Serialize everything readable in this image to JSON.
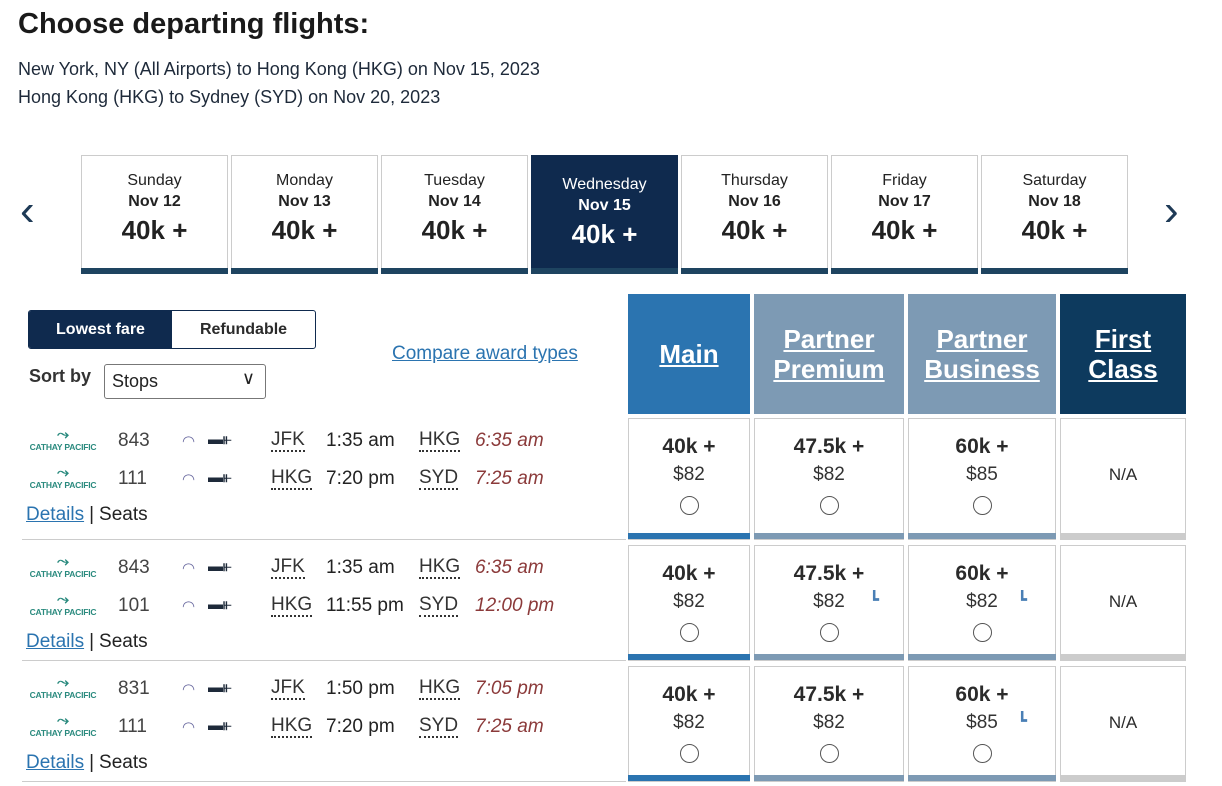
{
  "header": {
    "title": "Choose departing flights:",
    "segments": [
      "New York, NY (All Airports) to Hong Kong (HKG) on Nov 15, 2023",
      "Hong Kong (HKG) to Sydney (SYD) on Nov 20, 2023"
    ]
  },
  "date_strip": {
    "prev_icon": "chevron-left-icon",
    "next_icon": "chevron-right-icon",
    "days": [
      {
        "weekday": "Sunday",
        "date": "Nov 12",
        "price": "40k +"
      },
      {
        "weekday": "Monday",
        "date": "Nov 13",
        "price": "40k +"
      },
      {
        "weekday": "Tuesday",
        "date": "Nov 14",
        "price": "40k +"
      },
      {
        "weekday": "Wednesday",
        "date": "Nov 15",
        "price": "40k +",
        "selected": true
      },
      {
        "weekday": "Thursday",
        "date": "Nov 16",
        "price": "40k +"
      },
      {
        "weekday": "Friday",
        "date": "Nov 17",
        "price": "40k +"
      },
      {
        "weekday": "Saturday",
        "date": "Nov 18",
        "price": "40k +"
      }
    ]
  },
  "controls": {
    "fare_toggle": [
      "Lowest fare",
      "Refundable"
    ],
    "selected_toggle": "Lowest fare",
    "sort_label": "Sort by",
    "sort_value": "Stops",
    "compare_link": "Compare award types"
  },
  "columns": [
    {
      "label": "Main",
      "color": "#2b74b0"
    },
    {
      "label": "Partner Premium",
      "color": "#7d9ab4"
    },
    {
      "label": "Partner Business",
      "color": "#7d9ab4"
    },
    {
      "label": "First Class",
      "color": "#0d3a5e"
    }
  ],
  "airline": "CATHAY PACIFIC",
  "links": {
    "details": "Details",
    "separator": "|",
    "seats": "Seats"
  },
  "flights": [
    {
      "legs": [
        {
          "flight": "843",
          "from": "JFK",
          "dep": "1:35 am",
          "to": "HKG",
          "arr": "6:35 am"
        },
        {
          "flight": "111",
          "from": "HKG",
          "dep": "7:20 pm",
          "to": "SYD",
          "arr": "7:25 am"
        }
      ],
      "fares": [
        {
          "points": "40k +",
          "cash": "$82"
        },
        {
          "points": "47.5k +",
          "cash": "$82"
        },
        {
          "points": "60k +",
          "cash": "$85"
        },
        {
          "na": "N/A"
        }
      ]
    },
    {
      "legs": [
        {
          "flight": "843",
          "from": "JFK",
          "dep": "1:35 am",
          "to": "HKG",
          "arr": "6:35 am"
        },
        {
          "flight": "101",
          "from": "HKG",
          "dep": "11:55 pm",
          "to": "SYD",
          "arr": "12:00 pm"
        }
      ],
      "fares": [
        {
          "points": "40k +",
          "cash": "$82"
        },
        {
          "points": "47.5k +",
          "cash": "$82",
          "seat_icon": true
        },
        {
          "points": "60k +",
          "cash": "$82",
          "seat_icon": true
        },
        {
          "na": "N/A"
        }
      ]
    },
    {
      "legs": [
        {
          "flight": "831",
          "from": "JFK",
          "dep": "1:50 pm",
          "to": "HKG",
          "arr": "7:05 pm"
        },
        {
          "flight": "111",
          "from": "HKG",
          "dep": "7:20 pm",
          "to": "SYD",
          "arr": "7:25 am"
        }
      ],
      "fares": [
        {
          "points": "40k +",
          "cash": "$82"
        },
        {
          "points": "47.5k +",
          "cash": "$82"
        },
        {
          "points": "60k +",
          "cash": "$85",
          "seat_icon": true
        },
        {
          "na": "N/A"
        }
      ]
    }
  ]
}
